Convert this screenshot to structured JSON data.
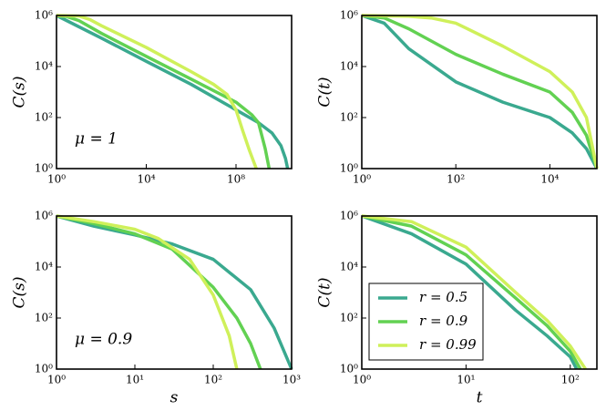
{
  "chart_data": [
    {
      "type": "line",
      "xscale": "log",
      "yscale": "log",
      "ylabel": "C(s)",
      "annotation": "μ = 1",
      "xlim": [
        1,
        30000000000
      ],
      "ylim": [
        1,
        1000000
      ],
      "xticks": [
        {
          "value": 1,
          "label": "10⁰"
        },
        {
          "value": 10000,
          "label": "10⁴"
        },
        {
          "value": 100000000,
          "label": "10⁸"
        }
      ],
      "yticks": [
        {
          "value": 1,
          "label": "10⁰"
        },
        {
          "value": 100,
          "label": "10²"
        },
        {
          "value": 10000,
          "label": "10⁴"
        },
        {
          "value": 1000000,
          "label": "10⁶"
        }
      ],
      "series": [
        {
          "color": "#3aa98f",
          "x": [
            1,
            100,
            10000,
            1000000,
            100000000,
            1000000000,
            4000000000,
            10000000000,
            16000000000,
            20000000000
          ],
          "values": [
            1000000,
            130000,
            16000,
            2000,
            200,
            63,
            25,
            8,
            2.5,
            1
          ]
        },
        {
          "color": "#62d152",
          "x": [
            1,
            3,
            10,
            100,
            10000,
            1000000,
            100000000,
            500000000,
            1000000000,
            2000000000,
            3000000000
          ],
          "values": [
            1000000,
            900000,
            630000,
            200000,
            25000,
            3200,
            400,
            130,
            63,
            6,
            1
          ]
        },
        {
          "color": "#cff05a",
          "x": [
            1,
            10,
            30,
            100,
            10000,
            1000000,
            10000000,
            40000000,
            100000000,
            200000000,
            400000000,
            800000000
          ],
          "values": [
            1000000,
            950000,
            700000,
            400000,
            56000,
            6300,
            2000,
            800,
            200,
            30,
            5,
            1
          ]
        }
      ]
    },
    {
      "type": "line",
      "xscale": "log",
      "yscale": "log",
      "ylabel": "C(t)",
      "xlim": [
        1,
        100000
      ],
      "ylim": [
        1,
        1000000
      ],
      "xticks": [
        {
          "value": 1,
          "label": "10⁰"
        },
        {
          "value": 100,
          "label": "10²"
        },
        {
          "value": 10000,
          "label": "10⁴"
        }
      ],
      "yticks": [
        {
          "value": 1,
          "label": "10⁰"
        },
        {
          "value": 100,
          "label": "10²"
        },
        {
          "value": 10000,
          "label": "10⁴"
        },
        {
          "value": 1000000,
          "label": "10⁶"
        }
      ],
      "series": [
        {
          "color": "#3aa98f",
          "x": [
            1,
            3,
            10,
            100,
            1000,
            10000,
            30000,
            60000,
            100000
          ],
          "values": [
            1000000,
            500000,
            50000,
            2500,
            400,
            100,
            25,
            6,
            1
          ]
        },
        {
          "color": "#62d152",
          "x": [
            1,
            3,
            10,
            100,
            1000,
            10000,
            30000,
            60000,
            100000
          ],
          "values": [
            1000000,
            800000,
            300000,
            30000,
            5000,
            1000,
            160,
            20,
            1
          ]
        },
        {
          "color": "#cff05a",
          "x": [
            1,
            10,
            30,
            100,
            1000,
            10000,
            30000,
            60000,
            100000
          ],
          "values": [
            1000000,
            930000,
            800000,
            500000,
            63000,
            6300,
            1000,
            100,
            1
          ]
        }
      ]
    },
    {
      "type": "line",
      "xscale": "log",
      "yscale": "log",
      "ylabel": "C(s)",
      "xlabel": "s",
      "annotation": "μ = 0.9",
      "xlim": [
        1,
        1000
      ],
      "ylim": [
        1,
        1000000
      ],
      "xticks": [
        {
          "value": 1,
          "label": "10⁰"
        },
        {
          "value": 10,
          "label": "10¹"
        },
        {
          "value": 100,
          "label": "10²"
        },
        {
          "value": 1000,
          "label": "10³"
        }
      ],
      "yticks": [
        {
          "value": 1,
          "label": "10⁰"
        },
        {
          "value": 100,
          "label": "10²"
        },
        {
          "value": 10000,
          "label": "10⁴"
        },
        {
          "value": 1000000,
          "label": "10⁶"
        }
      ],
      "series": [
        {
          "color": "#3aa98f",
          "x": [
            1,
            3,
            10,
            30,
            100,
            300,
            600,
            1000
          ],
          "values": [
            1000000,
            400000,
            180000,
            80000,
            20000,
            1300,
            40,
            1
          ]
        },
        {
          "color": "#62d152",
          "x": [
            1,
            3,
            10,
            30,
            100,
            200,
            300,
            400
          ],
          "values": [
            1000000,
            500000,
            200000,
            50000,
            1600,
            100,
            10,
            1
          ]
        },
        {
          "color": "#cff05a",
          "x": [
            1,
            3,
            10,
            20,
            50,
            100,
            160,
            200
          ],
          "values": [
            1000000,
            600000,
            300000,
            130000,
            20000,
            800,
            20,
            1
          ]
        }
      ]
    },
    {
      "type": "line",
      "xscale": "log",
      "yscale": "log",
      "ylabel": "C(t)",
      "xlabel": "t",
      "legend": "lower left",
      "xlim": [
        1,
        180
      ],
      "ylim": [
        1,
        1000000
      ],
      "xticks": [
        {
          "value": 1,
          "label": "10⁰"
        },
        {
          "value": 10,
          "label": "10¹"
        },
        {
          "value": 100,
          "label": "10²"
        }
      ],
      "yticks": [
        {
          "value": 1,
          "label": "10⁰"
        },
        {
          "value": 100,
          "label": "10²"
        },
        {
          "value": 10000,
          "label": "10⁴"
        },
        {
          "value": 1000000,
          "label": "10⁶"
        }
      ],
      "series": [
        {
          "name": "r = 0.5",
          "color": "#3aa98f",
          "x": [
            1,
            3,
            10,
            30,
            60,
            100,
            115
          ],
          "values": [
            1000000,
            200000,
            13000,
            200,
            20,
            3,
            1
          ]
        },
        {
          "name": "r = 0.9",
          "color": "#62d152",
          "x": [
            1,
            3,
            10,
            30,
            60,
            100,
            125
          ],
          "values": [
            1000000,
            400000,
            30000,
            600,
            50,
            5,
            1
          ]
        },
        {
          "name": "r = 0.99",
          "color": "#cff05a",
          "x": [
            1,
            3,
            10,
            30,
            60,
            100,
            140
          ],
          "values": [
            1000000,
            600000,
            60000,
            1000,
            80,
            8,
            1
          ]
        }
      ]
    }
  ]
}
